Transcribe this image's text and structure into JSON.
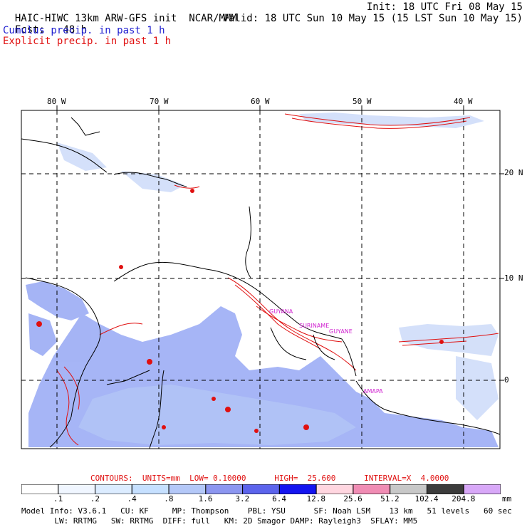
{
  "header": {
    "model_title": "HAIC-HIWC 13km ARW-GFS init",
    "org": "NCAR/MMM",
    "init_time": "Init: 18 UTC Fri 08 May 15",
    "forecast_label": "Fcst:",
    "forecast_hours": "48 h",
    "valid_time": "Valid: 18 UTC Sun 10 May 15 (15 LST Sun 10 May 15)",
    "cumulus_legend": "Cumulus precip. in past 1 h",
    "explicit_legend": "Explicit precip. in past 1 h"
  },
  "map": {
    "lon_labels": [
      "80 W",
      "70 W",
      "60 W",
      "50 W",
      "40 W"
    ],
    "lat_labels": [
      "20 N",
      "10 N",
      "0"
    ],
    "colors": {
      "grid": "#000000",
      "coast": "#000000",
      "cumulus": "#3c5ce6",
      "explicit": "#e01010",
      "place_label": "#d020d0"
    },
    "place_labels": [
      "GUYANA",
      "SURINAME",
      "GUYANE",
      "AMAPA"
    ]
  },
  "contours_line": {
    "text": "CONTOURS:  UNITS=mm  LOW= 0.10000      HIGH=  25.600      INTERVAL=X  4.0000"
  },
  "colorbar": {
    "labels": [
      ".1",
      ".2",
      ".4",
      ".8",
      "1.6",
      "3.2",
      "6.4",
      "12.8",
      "25.6",
      "51.2",
      "102.4",
      "204.8"
    ],
    "unit": "mm",
    "colors": [
      "#ffffff",
      "#f0f6ff",
      "#dcecff",
      "#c6e0ff",
      "#b4c8f8",
      "#8c96f0",
      "#5c64ec",
      "#1414f0",
      "#ffd6e0",
      "#f08cb4",
      "#c8c8c8",
      "#3c3c3c",
      "#d8a8f8"
    ]
  },
  "model_info": {
    "line1": "Model Info: V3.6.1   CU: KF     MP: Thompson    PBL: YSU      SF: Noah LSM    13 km   51 levels   60 sec",
    "line2": "       LW: RRTMG   SW: RRTMG  DIFF: full   KM: 2D Smagor DAMP: Rayleigh3  SFLAY: MM5"
  }
}
